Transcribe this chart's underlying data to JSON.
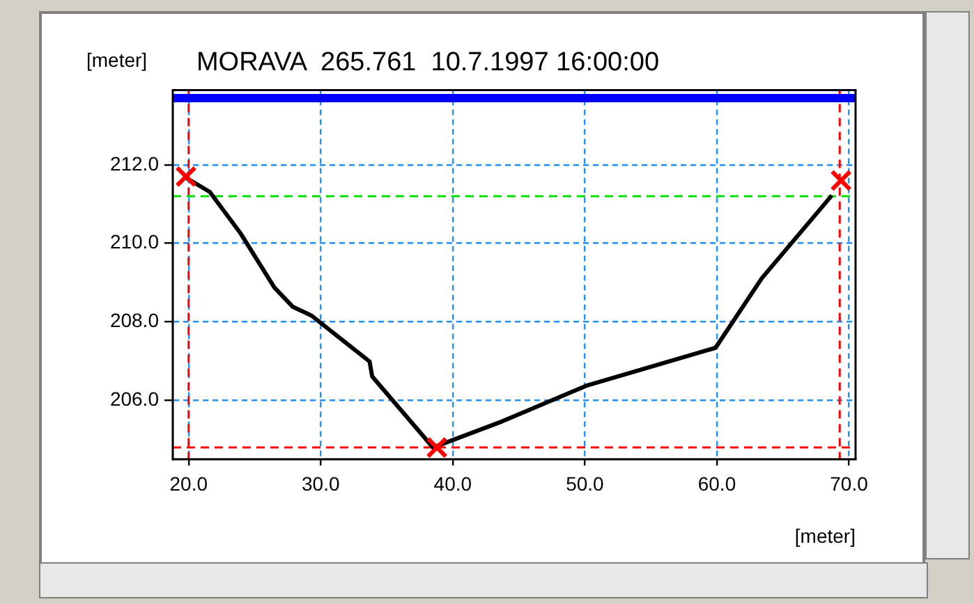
{
  "chart_data": {
    "type": "line",
    "title": "MORAVA  265.761  10.7.1997 16:00:00",
    "xlabel": "[meter]",
    "ylabel": "[meter]",
    "xlim": [
      18.8,
      70.5
    ],
    "ylim": [
      204.5,
      213.9
    ],
    "xticks": [
      {
        "value": 20,
        "label": "20.0"
      },
      {
        "value": 30,
        "label": "30.0"
      },
      {
        "value": 40,
        "label": "40.0"
      },
      {
        "value": 50,
        "label": "50.0"
      },
      {
        "value": 60,
        "label": "60.0"
      },
      {
        "value": 70,
        "label": "70.0"
      }
    ],
    "yticks": [
      {
        "value": 206,
        "label": "206.0"
      },
      {
        "value": 208,
        "label": "208.0"
      },
      {
        "value": 210,
        "label": "210.0"
      },
      {
        "value": 212,
        "label": "212.0"
      }
    ],
    "grid": true,
    "legend": false,
    "series": [
      {
        "color": "#000000",
        "marker": "none",
        "x": [
          19.8,
          21.6,
          23.9,
          26.5,
          27.9,
          29.3,
          33.7,
          33.9,
          38.5,
          43.7,
          50.1,
          59.9,
          63.4,
          68.7
        ],
        "values": [
          211.67,
          211.31,
          210.27,
          208.87,
          208.38,
          208.16,
          206.99,
          206.61,
          204.8,
          205.46,
          206.37,
          207.34,
          209.11,
          211.22
        ]
      },
      {
        "type": "scatter",
        "color": "#ff0000",
        "marker": "cross",
        "x": [
          19.8,
          38.8,
          69.4
        ],
        "values": [
          211.7,
          204.8,
          211.6
        ]
      }
    ],
    "ref_lines": [
      {
        "axis": "x",
        "value": 20,
        "color": "#ff0000",
        "line_style": "dashed"
      },
      {
        "axis": "x",
        "value": 69.3,
        "color": "#ff0000",
        "line_style": "dashed"
      },
      {
        "axis": "y",
        "value": 204.8,
        "color": "#ff0000",
        "line_style": "dashed"
      },
      {
        "axis": "y",
        "value": 211.2,
        "color": "#00e000",
        "line_style": "dashed"
      },
      {
        "axis": "y",
        "value": 213.7,
        "color": "#0000ff",
        "line_style": "solid"
      }
    ]
  }
}
